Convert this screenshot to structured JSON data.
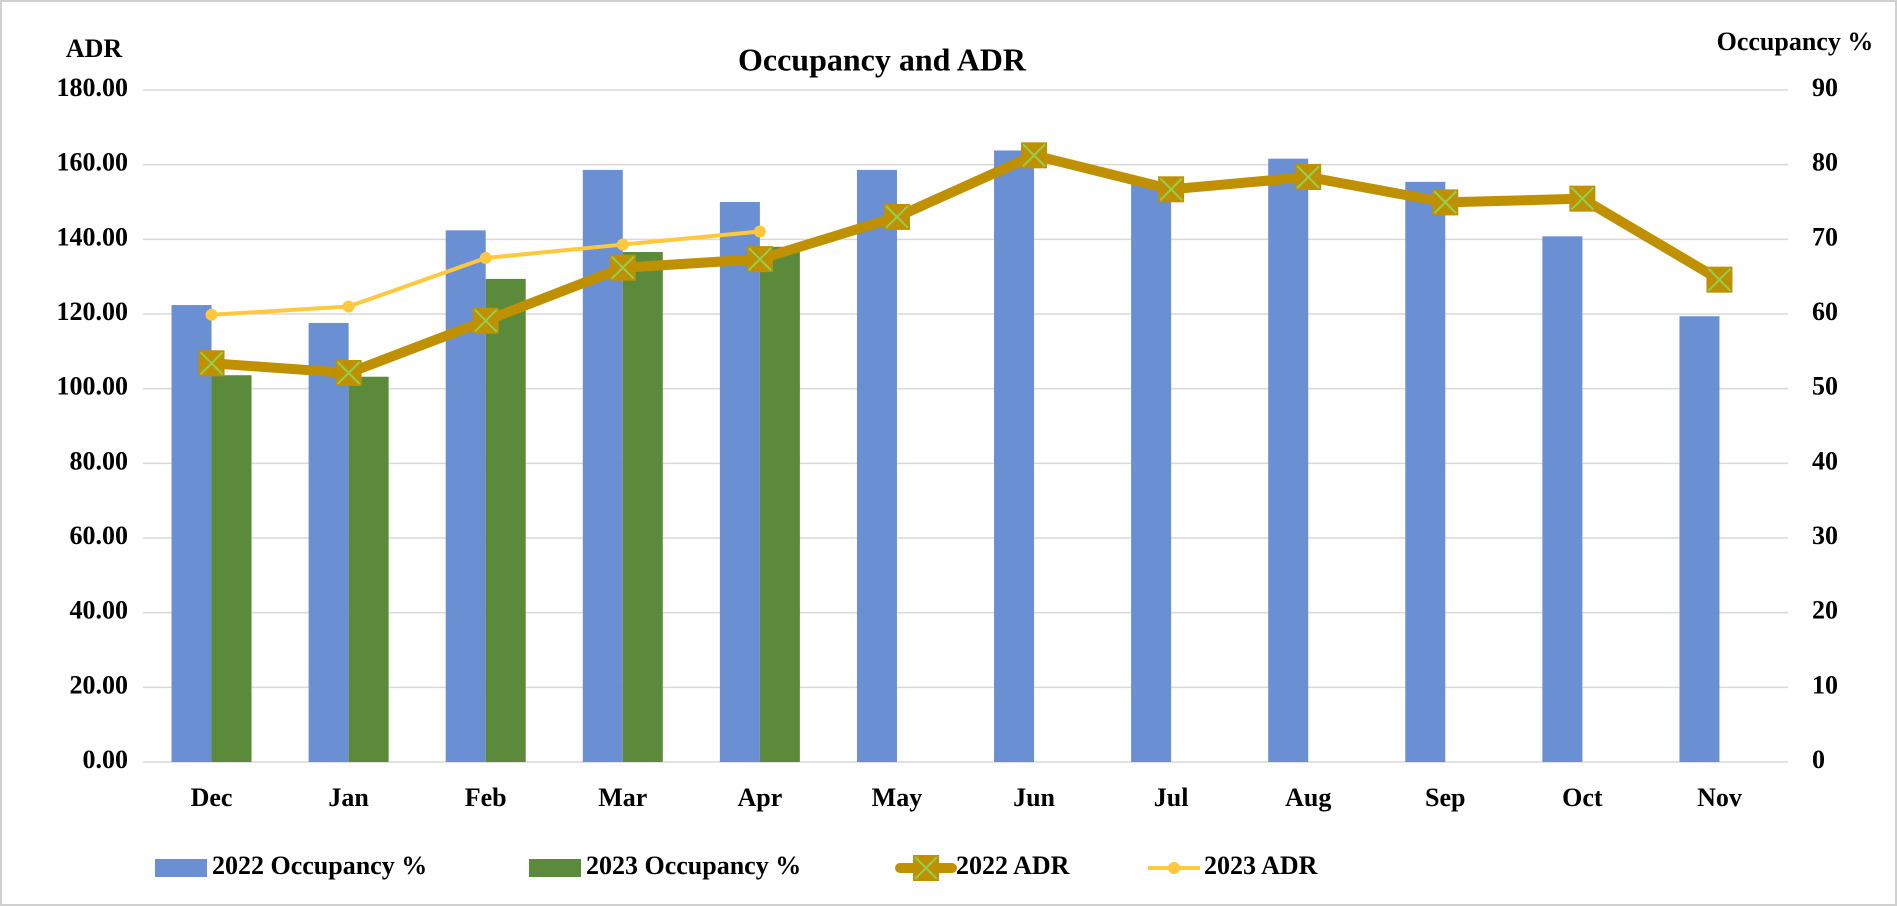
{
  "chart_data": {
    "type": "bar",
    "title": "Occupancy and ADR",
    "y_label": "ADR",
    "y2_label": "Occupancy %",
    "categories": [
      "Dec",
      "Jan",
      "Feb",
      "Mar",
      "Apr",
      "May",
      "Jun",
      "Jul",
      "Aug",
      "Sep",
      "Oct",
      "Nov"
    ],
    "series": [
      {
        "name": "2022 Occupancy %",
        "type": "bar",
        "axis": "y2",
        "color": "#6a8fd2",
        "values": [
          61.2,
          58.8,
          71.2,
          79.3,
          75,
          79.3,
          81.9,
          77.7,
          80.8,
          77.7,
          70.4,
          59.7
        ]
      },
      {
        "name": "2023 Occupancy %",
        "type": "bar",
        "axis": "y2",
        "color": "#5b8a3a",
        "values": [
          51.8,
          51.6,
          64.7,
          68.3,
          69,
          null,
          null,
          null,
          null,
          null,
          null,
          null
        ]
      },
      {
        "name": "2022 ADR",
        "type": "line",
        "color": "#bf9000",
        "marker": "square-x",
        "marker_color": "#92d050",
        "values": [
          106.8,
          104.2,
          118.2,
          132.4,
          134.7,
          146,
          162.5,
          153.4,
          156.7,
          149.9,
          150.9,
          129.2
        ]
      },
      {
        "name": "2023 ADR",
        "type": "line",
        "color": "#ffc83d",
        "marker": "circle",
        "values": [
          119.8,
          122,
          135,
          138.6,
          142.1,
          null,
          null,
          null,
          null,
          null,
          null,
          null
        ]
      }
    ],
    "ylim": [
      0,
      180
    ],
    "yticks": [
      {
        "value": 0,
        "label": "0.00"
      },
      {
        "value": 20,
        "label": "20.00"
      },
      {
        "value": 40,
        "label": "40.00"
      },
      {
        "value": 60,
        "label": "60.00"
      },
      {
        "value": 80,
        "label": "80.00"
      },
      {
        "value": 100,
        "label": "100.00"
      },
      {
        "value": 120,
        "label": "120.00"
      },
      {
        "value": 140,
        "label": "140.00"
      },
      {
        "value": 160,
        "label": "160.00"
      },
      {
        "value": 180,
        "label": "180.00"
      }
    ],
    "y2lim": [
      0,
      90
    ],
    "y2ticks": [
      0,
      10,
      20,
      30,
      40,
      50,
      60,
      70,
      80,
      90
    ],
    "grid": true,
    "legend": "bottom"
  }
}
